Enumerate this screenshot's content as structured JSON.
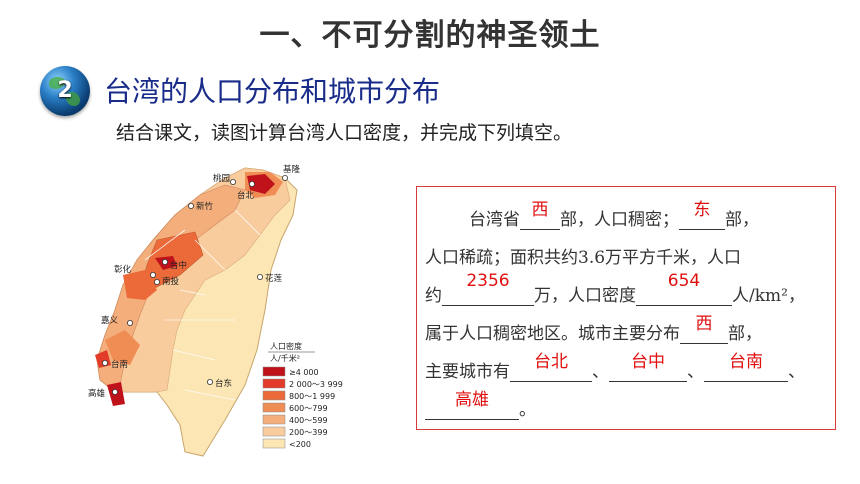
{
  "title": "一、不可分割的神圣领土",
  "section": {
    "number": "2",
    "heading": "台湾的人口分布和城市分布"
  },
  "instruction": "结合课文，读图计算台湾人口密度，并完成下列填空。",
  "map": {
    "cities": [
      "基隆",
      "桃园",
      "台北",
      "新竹",
      "台中",
      "彰化",
      "南投",
      "花莲",
      "嘉义",
      "台南",
      "高雄",
      "台东"
    ],
    "legend": {
      "title": "人口密度",
      "unit": "人/千米²",
      "items": [
        {
          "label": "≥4 000",
          "color": "#c0121b"
        },
        {
          "label": "2 000～3 999",
          "color": "#e23b2a"
        },
        {
          "label": "800～1 999",
          "color": "#ec6a3a"
        },
        {
          "label": "600～799",
          "color": "#f08d55"
        },
        {
          "label": "400～599",
          "color": "#f4ae7b"
        },
        {
          "label": "200～399",
          "color": "#f8cc9c"
        },
        {
          "label": "<200",
          "color": "#fbe6b4"
        }
      ]
    }
  },
  "fill": {
    "l1a": "台湾省",
    "a1": "西",
    "l1b": "部，人口稠密；",
    "a2": "东",
    "l1c": "部，",
    "l2": "人口稀疏；面积共约3.6万平方千米，人口",
    "l3a": "约",
    "a3": "2356",
    "l3b": "万，人口密度",
    "a4": "654",
    "l3c": "人/km²，",
    "l4a": "属于人口稠密地区。城市主要分布",
    "a5": "西",
    "l4b": "部，",
    "l5a": "主要城市有",
    "a6": "台北",
    "sep1": "、",
    "a7": "台中",
    "sep2": "、",
    "a8": "台南",
    "sep3": "、",
    "a9": "高雄",
    "end": "。"
  }
}
